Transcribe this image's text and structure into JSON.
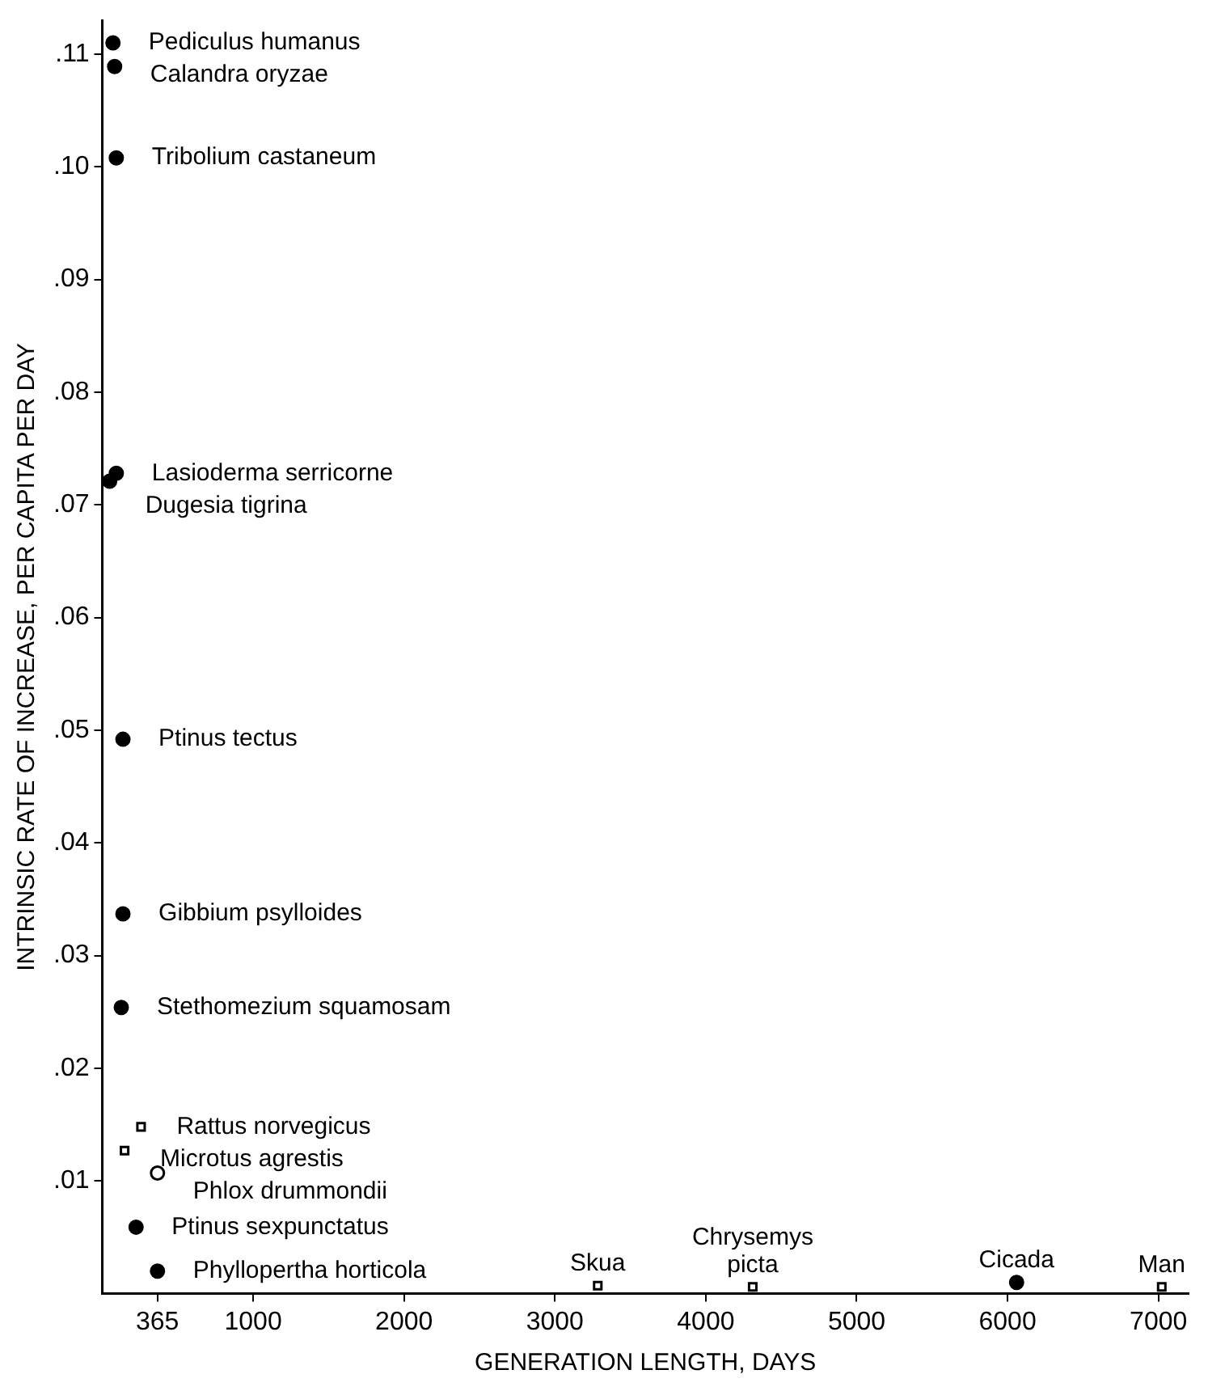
{
  "chart_data": {
    "type": "scatter",
    "xlabel": "GENERATION LENGTH, DAYS",
    "ylabel": "INTRINSIC RATE OF INCREASE, PER CAPITA PER DAY",
    "xlim": [
      0,
      7200
    ],
    "ylim": [
      0,
      0.113
    ],
    "xticks": [
      365,
      1000,
      2000,
      3000,
      4000,
      5000,
      6000,
      7000
    ],
    "yticks": [
      {
        "value": 0.01,
        "label": ".01"
      },
      {
        "value": 0.02,
        "label": ".02"
      },
      {
        "value": 0.03,
        "label": ".03"
      },
      {
        "value": 0.04,
        "label": ".04"
      },
      {
        "value": 0.05,
        "label": ".05"
      },
      {
        "value": 0.06,
        "label": ".06"
      },
      {
        "value": 0.07,
        "label": ".07"
      },
      {
        "value": 0.08,
        "label": ".08"
      },
      {
        "value": 0.09,
        "label": ".09"
      },
      {
        "value": 0.1,
        "label": ".10"
      },
      {
        "value": 0.11,
        "label": ".11"
      }
    ],
    "grid": false,
    "legend": false,
    "series": [
      {
        "color": "#000000",
        "marker": "circle",
        "x": [
          71,
          82,
          93,
          93,
          49,
          137,
          137,
          126,
          224,
          366,
          6060
        ],
        "values": [
          0.111,
          0.1089,
          0.1008,
          0.0728,
          0.0721,
          0.0492,
          0.0337,
          0.0254,
          0.0059,
          0.002,
          0.001
        ]
      },
      {
        "color": "#000000",
        "marker": "square",
        "x": [
          257,
          148,
          3284,
          4311,
          7022
        ],
        "values": [
          0.0148,
          0.0127,
          0.0007,
          0.0006,
          0.0006
        ]
      },
      {
        "color": "#000000",
        "marker": "circle",
        "x": [
          366
        ],
        "values": [
          0.0107
        ]
      }
    ],
    "annotations": [
      {
        "text": "Pediculus humanus",
        "x": 71,
        "y": 0.111
      },
      {
        "text": "Calandra oryzae",
        "x": 82,
        "y": 0.1089
      },
      {
        "text": "Tribolium castaneum",
        "x": 93,
        "y": 0.1008
      },
      {
        "text": "Lasioderma serricorne",
        "x": 93,
        "y": 0.0728
      },
      {
        "text": "Dugesia tigrina",
        "x": 49,
        "y": 0.0721
      },
      {
        "text": "Ptinus tectus",
        "x": 137,
        "y": 0.0492
      },
      {
        "text": "Gibbium psylloides",
        "x": 137,
        "y": 0.0337
      },
      {
        "text": "Stethomezium squamosam",
        "x": 126,
        "y": 0.0254
      },
      {
        "text": "Rattus norvegicus",
        "x": 257,
        "y": 0.0148
      },
      {
        "text": "Microtus agrestis",
        "x": 148,
        "y": 0.0127
      },
      {
        "text": "Phlox drummondii",
        "x": 366,
        "y": 0.0107
      },
      {
        "text": "Ptinus sexpunctatus",
        "x": 224,
        "y": 0.0059
      },
      {
        "text": "Phyllopertha horticola",
        "x": 366,
        "y": 0.002
      },
      {
        "text": "Skua",
        "x": 3284,
        "y": 0.0007
      },
      {
        "text": "Chrysemys\npicta",
        "x": 4311,
        "y": 0.0006
      },
      {
        "text": "Cicada",
        "x": 6060,
        "y": 0.001
      },
      {
        "text": "Man",
        "x": 7022,
        "y": 0.0006
      }
    ]
  }
}
